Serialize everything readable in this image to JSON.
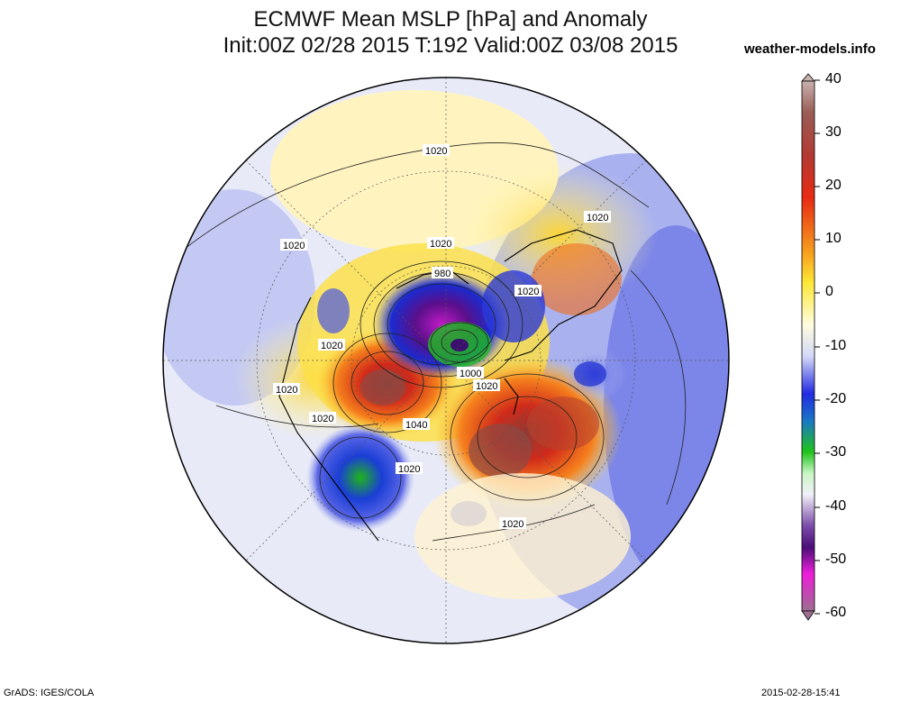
{
  "header": {
    "title_line1": "ECMWF Mean MSLP [hPa] and Anomaly",
    "title_line2": "Init:00Z 02/28 2015 T:192 Valid:00Z 03/08 2015",
    "site": "weather-models.info"
  },
  "map": {
    "contour_labels": [
      "1020",
      "1020",
      "1020",
      "1020",
      "1020",
      "1020",
      "1020",
      "1020",
      "1020",
      "1020",
      "980",
      "1000",
      "1040"
    ]
  },
  "colorbar": {
    "ticks": [
      "40",
      "30",
      "20",
      "10",
      "0",
      "-10",
      "-20",
      "-30",
      "-40",
      "-50",
      "-60"
    ]
  },
  "footer": {
    "left": "GrADS: IGES/COLA",
    "right": "2015-02-28-15:41"
  }
}
